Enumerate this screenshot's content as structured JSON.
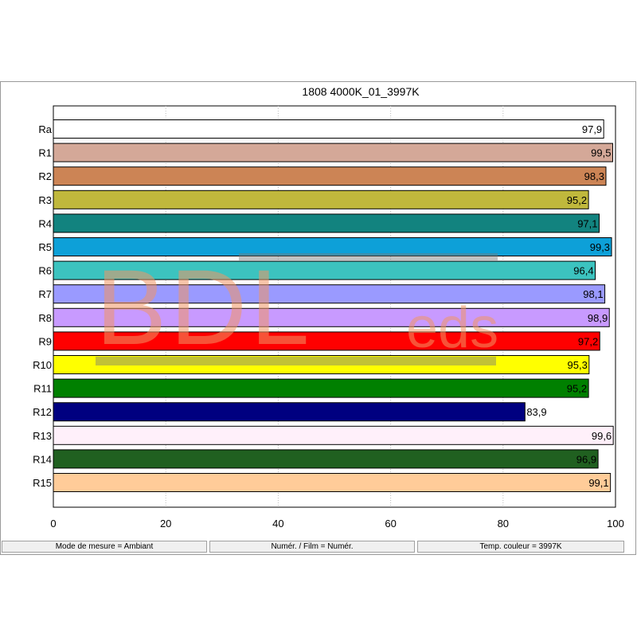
{
  "chart_data": {
    "type": "bar",
    "orientation": "horizontal",
    "title": "1808 4000K_01_3997K",
    "categories": [
      "Ra",
      "R1",
      "R2",
      "R3",
      "R4",
      "R5",
      "R6",
      "R7",
      "R8",
      "R9",
      "R10",
      "R11",
      "R12",
      "R13",
      "R14",
      "R15"
    ],
    "values": [
      97.9,
      99.5,
      98.3,
      95.2,
      97.1,
      99.3,
      96.4,
      98.1,
      98.9,
      97.2,
      95.3,
      95.2,
      83.9,
      99.6,
      96.9,
      99.1
    ],
    "value_labels": [
      "97,9",
      "99,5",
      "98,3",
      "95,2",
      "97,1",
      "99,3",
      "96,4",
      "98,1",
      "98,9",
      "97,2",
      "95,3",
      "95,2",
      "83,9",
      "99,6",
      "96,9",
      "99,1"
    ],
    "colors": [
      "#ffffff",
      "#d4a898",
      "#cc8455",
      "#c0b83c",
      "#12837f",
      "#0da0d8",
      "#3cc3bf",
      "#9a9aff",
      "#c89aff",
      "#ff0000",
      "#ffff00",
      "#008000",
      "#000080",
      "#fff0fa",
      "#206020",
      "#ffcc99"
    ],
    "xlim": [
      0,
      100
    ],
    "x_ticks": [
      0,
      20,
      40,
      60,
      80,
      100
    ],
    "x_tick_labels": [
      "0",
      "20",
      "40",
      "60",
      "80",
      "100"
    ],
    "grid": true
  },
  "status_bar": {
    "mode": "Mode de mesure = Ambiant",
    "film": "Numér. / Film = Numér.",
    "temp": "Temp. couleur = 3997K"
  },
  "watermark": {
    "main": "BDL",
    "sub": "eds"
  }
}
